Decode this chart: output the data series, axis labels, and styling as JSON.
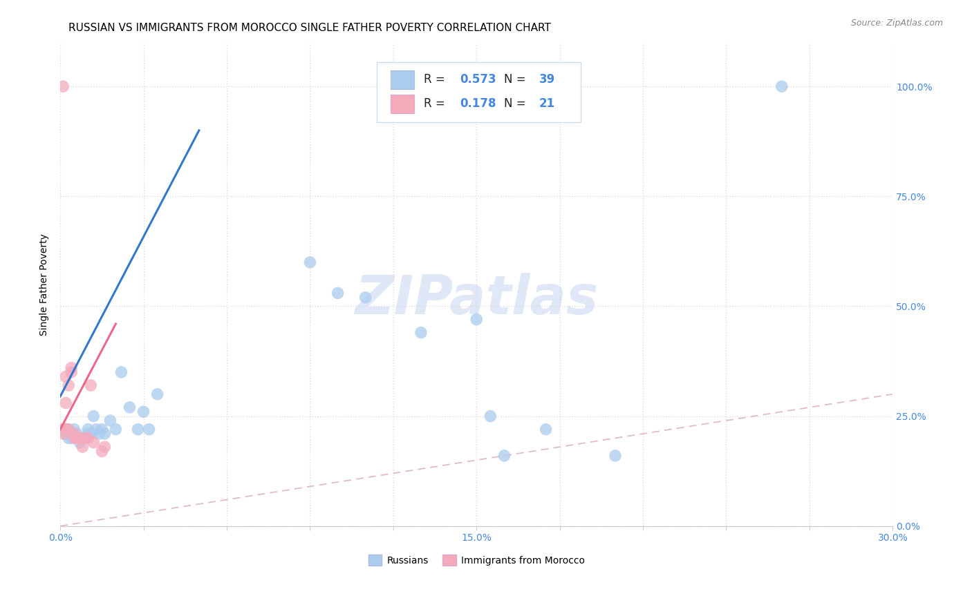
{
  "title": "RUSSIAN VS IMMIGRANTS FROM MOROCCO SINGLE FATHER POVERTY CORRELATION CHART",
  "source": "Source: ZipAtlas.com",
  "ylabel": "Single Father Poverty",
  "xlim": [
    0.0,
    0.3
  ],
  "ylim": [
    0.0,
    1.1
  ],
  "ytick_vals": [
    0.0,
    0.25,
    0.5,
    0.75,
    1.0
  ],
  "ytick_labels": [
    "0.0%",
    "25.0%",
    "50.0%",
    "75.0%",
    "100.0%"
  ],
  "xtick_vals_full": [
    0.0,
    0.03,
    0.06,
    0.09,
    0.12,
    0.15,
    0.18,
    0.21,
    0.24,
    0.27,
    0.3
  ],
  "xtick_labels": [
    "0.0%",
    "",
    "",
    "",
    "",
    "15.0%",
    "",
    "",
    "",
    "",
    "30.0%"
  ],
  "russian_color": "#aaccee",
  "morocco_color": "#f4aabb",
  "russian_line_color": "#3377cc",
  "morocco_line_color": "#ee6688",
  "diagonal_color": "#ddbbcc",
  "R_russian": 0.573,
  "N_russian": 39,
  "R_morocco": 0.178,
  "N_morocco": 21,
  "watermark": "ZIPatlas",
  "title_fontsize": 11,
  "axis_color": "#4488dd",
  "russians_x": [
    0.001,
    0.002,
    0.002,
    0.003,
    0.003,
    0.004,
    0.004,
    0.005,
    0.005,
    0.006,
    0.007,
    0.008,
    0.009,
    0.01,
    0.01,
    0.011,
    0.012,
    0.013,
    0.014,
    0.015,
    0.016,
    0.018,
    0.02,
    0.022,
    0.025,
    0.028,
    0.03,
    0.032,
    0.035,
    0.09,
    0.1,
    0.11,
    0.13,
    0.15,
    0.155,
    0.16,
    0.175,
    0.2,
    0.26
  ],
  "russians_y": [
    0.22,
    0.21,
    0.22,
    0.2,
    0.22,
    0.21,
    0.2,
    0.21,
    0.22,
    0.21,
    0.19,
    0.2,
    0.2,
    0.21,
    0.22,
    0.21,
    0.25,
    0.22,
    0.21,
    0.22,
    0.21,
    0.24,
    0.22,
    0.35,
    0.27,
    0.22,
    0.26,
    0.22,
    0.3,
    0.6,
    0.53,
    0.52,
    0.44,
    0.47,
    0.25,
    0.16,
    0.22,
    0.16,
    1.0
  ],
  "morocco_x": [
    0.001,
    0.001,
    0.001,
    0.002,
    0.002,
    0.002,
    0.003,
    0.003,
    0.004,
    0.004,
    0.005,
    0.005,
    0.006,
    0.007,
    0.008,
    0.009,
    0.01,
    0.011,
    0.012,
    0.015,
    0.016
  ],
  "morocco_y": [
    0.21,
    0.22,
    1.0,
    0.22,
    0.28,
    0.34,
    0.32,
    0.22,
    0.36,
    0.35,
    0.21,
    0.2,
    0.2,
    0.2,
    0.18,
    0.2,
    0.2,
    0.32,
    0.19,
    0.17,
    0.18
  ],
  "russian_line": [
    0.0,
    0.295,
    0.05,
    0.9
  ],
  "morocco_line": [
    0.0,
    0.22,
    0.02,
    0.46
  ],
  "diagonal_line": [
    0.0,
    0.0,
    1.0,
    1.0
  ]
}
